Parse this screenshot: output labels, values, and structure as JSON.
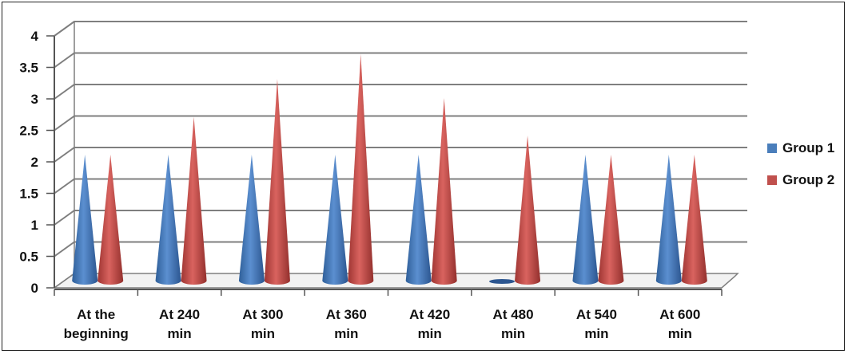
{
  "chart_data": {
    "type": "bar",
    "shape": "cone",
    "categories": [
      [
        "At the",
        "beginning"
      ],
      [
        "At 240",
        "min"
      ],
      [
        "At 300",
        "min"
      ],
      [
        "At 360",
        "min"
      ],
      [
        "At 420",
        "min"
      ],
      [
        "At 480",
        "min"
      ],
      [
        "At 540",
        "min"
      ],
      [
        "At 600",
        "min"
      ]
    ],
    "series": [
      {
        "name": "Group 1",
        "color": "#4a7ebb",
        "values": [
          2,
          2,
          2,
          2,
          2,
          0,
          2,
          2
        ]
      },
      {
        "name": "Group 2",
        "color": "#c0504d",
        "values": [
          2,
          2.6,
          3.2,
          3.6,
          2.9,
          2.3,
          2,
          2
        ]
      }
    ],
    "ylim": [
      0,
      4
    ],
    "yticks": [
      "0",
      "0.5",
      "1",
      "1.5",
      "2",
      "2.5",
      "3",
      "3.5",
      "4"
    ],
    "grid": true,
    "legend_position": "right"
  }
}
